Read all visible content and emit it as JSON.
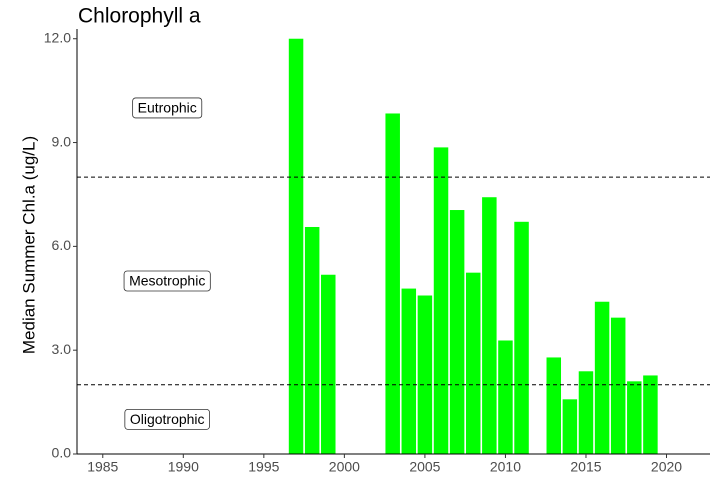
{
  "chart_data": {
    "type": "bar",
    "title": "Chlorophyll a",
    "y_label": "Median Summer Chl.a (ug/L)",
    "x": [
      1997,
      1998,
      1999,
      2003,
      2004,
      2005,
      2006,
      2007,
      2008,
      2009,
      2010,
      2011,
      2013,
      2014,
      2015,
      2016,
      2017,
      2018,
      2019
    ],
    "values": [
      12.0,
      6.56,
      5.18,
      9.84,
      4.78,
      4.58,
      8.86,
      7.05,
      5.24,
      7.42,
      3.28,
      6.71,
      2.79,
      1.58,
      2.39,
      4.4,
      3.94,
      2.1,
      2.27
    ],
    "color": "#00ff00",
    "xlim": [
      1983.4,
      2022.7
    ],
    "xticks": [
      1985,
      1990,
      1995,
      2000,
      2005,
      2010,
      2015,
      2020
    ],
    "ylim": [
      0,
      12.05
    ],
    "yticks": [
      {
        "value": 0,
        "label": "0.0"
      },
      {
        "value": 3,
        "label": "3.0"
      },
      {
        "value": 6,
        "label": "6.0"
      },
      {
        "value": 9,
        "label": "9.0"
      },
      {
        "value": 12,
        "label": "12.0"
      }
    ],
    "hlines": [
      8,
      2
    ],
    "annotations": [
      {
        "text": "Eutrophic",
        "x": 1989,
        "y": 10
      },
      {
        "text": "Mesotrophic",
        "x": 1989,
        "y": 5
      },
      {
        "text": "Oligotrophic",
        "x": 1989,
        "y": 1
      }
    ],
    "grid": false
  }
}
